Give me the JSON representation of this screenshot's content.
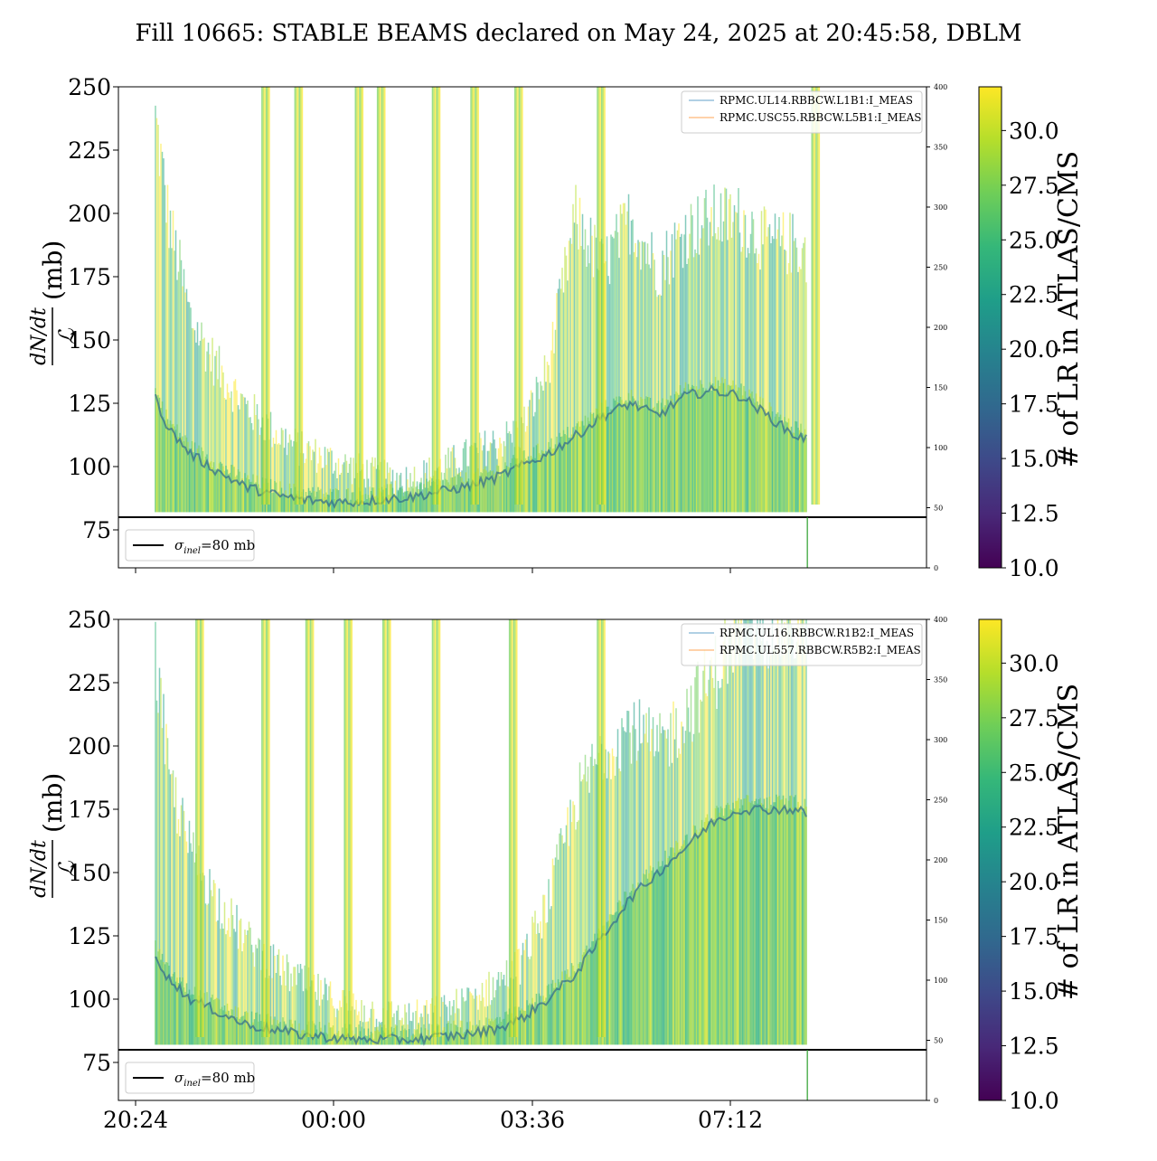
{
  "title": "Fill 10665: STABLE BEAMS declared on May 24, 2025 at 20:45:58, DBLM",
  "colors": {
    "viridis": [
      "#440154",
      "#482878",
      "#3e4989",
      "#31688e",
      "#26828e",
      "#1f9e89",
      "#35b779",
      "#6ece58",
      "#b5de2b",
      "#fde725"
    ],
    "trace_blue": "#1f77b4",
    "trace_orange": "#ff7f0e",
    "reference_line": "#000000"
  },
  "chart_data": [
    {
      "type": "area",
      "ylabel_numerator": "dN/dt",
      "ylabel_denominator": "ℒ",
      "ylabel_unit": "(mb)",
      "ylim": [
        60,
        250
      ],
      "yticks": [
        75,
        100,
        125,
        150,
        175,
        200,
        225,
        250
      ],
      "xticks": [
        "20:24",
        "00:00",
        "03:36",
        "07:12"
      ],
      "show_xtick_labels": false,
      "twin_ylim": [
        0,
        400
      ],
      "twin_yticks": [
        0,
        50,
        100,
        150,
        200,
        250,
        300,
        350,
        400
      ],
      "colorbar": {
        "label": "# of LR in ATLAS/CMS",
        "range": [
          10,
          32
        ],
        "ticks": [
          "10.0",
          "12.5",
          "15.0",
          "17.5",
          "20.0",
          "22.5",
          "25.0",
          "27.5",
          "30.0"
        ]
      },
      "series": [
        {
          "name": "RPMC.UL14.RBBCW.L1B1:I_MEAS",
          "color": "#1f77b4"
        },
        {
          "name": "RPMC.USC55.RBBCW.L5B1:I_MEAS",
          "color": "#ff7f0e"
        }
      ],
      "reference": {
        "label_symbol": "σ",
        "label_sub": "inel",
        "label_rest": "=80 mb",
        "value": 80
      },
      "band_envelope": {
        "x": [
          0.0,
          0.3,
          0.6,
          1.0,
          1.5,
          2.0,
          2.5,
          3.0,
          3.5,
          4.0,
          4.5,
          5.0,
          5.5,
          6.0,
          6.5,
          7.0,
          7.5,
          8.0,
          8.5,
          9.0,
          9.5,
          10.0,
          10.5,
          11.0,
          11.5,
          12.0,
          12.5
        ],
        "upper": [
          250,
          250,
          200,
          160,
          140,
          125,
          115,
          108,
          104,
          100,
          97,
          96,
          100,
          105,
          110,
          115,
          140,
          200,
          180,
          200,
          180,
          195,
          200,
          200,
          190,
          190,
          180
        ],
        "center": [
          140,
          130,
          115,
          105,
          98,
          92,
          89,
          87,
          86,
          86,
          87,
          88,
          90,
          92,
          95,
          100,
          105,
          112,
          120,
          125,
          120,
          128,
          130,
          128,
          120,
          112,
          110
        ],
        "lower": [
          82,
          82,
          82,
          82,
          82,
          82,
          82,
          82,
          82,
          82,
          82,
          82,
          82,
          82,
          82,
          82,
          82,
          82,
          82,
          82,
          82,
          82,
          82,
          82,
          82,
          82,
          82
        ],
        "spikes": [
          2.3,
          2.9,
          4.0,
          4.4,
          5.4,
          6.1,
          6.9,
          8.4,
          12.3
        ],
        "x_end": 12.2
      }
    },
    {
      "type": "area",
      "ylabel_numerator": "dN/dt",
      "ylabel_denominator": "ℒ",
      "ylabel_unit": "(mb)",
      "ylim": [
        60,
        250
      ],
      "yticks": [
        75,
        100,
        125,
        150,
        175,
        200,
        225,
        250
      ],
      "xticks": [
        "20:24",
        "00:00",
        "03:36",
        "07:12"
      ],
      "show_xtick_labels": true,
      "twin_ylim": [
        0,
        400
      ],
      "twin_yticks": [
        0,
        50,
        100,
        150,
        200,
        250,
        300,
        350,
        400
      ],
      "colorbar": {
        "label": "# of LR in ATLAS/CMS",
        "range": [
          10,
          32
        ],
        "ticks": [
          "10.0",
          "12.5",
          "15.0",
          "17.5",
          "20.0",
          "22.5",
          "25.0",
          "27.5",
          "30.0"
        ]
      },
      "series": [
        {
          "name": "RPMC.UL16.RBBCW.R1B2:I_MEAS",
          "color": "#1f77b4"
        },
        {
          "name": "RPMC.UL557.RBBCW.R5B2:I_MEAS",
          "color": "#ff7f0e"
        }
      ],
      "reference": {
        "label_symbol": "σ",
        "label_sub": "inel",
        "label_rest": "=80 mb",
        "value": 80
      },
      "band_envelope": {
        "x": [
          0.0,
          0.3,
          0.6,
          1.0,
          1.5,
          2.0,
          2.5,
          3.0,
          3.5,
          4.0,
          4.5,
          5.0,
          5.5,
          6.0,
          6.5,
          7.0,
          7.5,
          8.0,
          8.5,
          9.0,
          9.5,
          10.0,
          10.5,
          11.0,
          11.5,
          12.0,
          12.5
        ],
        "upper": [
          250,
          250,
          190,
          160,
          140,
          125,
          115,
          108,
          102,
          98,
          95,
          94,
          96,
          100,
          106,
          115,
          140,
          180,
          200,
          210,
          200,
          215,
          230,
          250,
          250,
          250,
          250
        ],
        "center": [
          130,
          120,
          108,
          100,
          95,
          90,
          88,
          86,
          85,
          84,
          84,
          84,
          85,
          86,
          88,
          92,
          100,
          110,
          125,
          140,
          150,
          160,
          170,
          175,
          175,
          175,
          170
        ],
        "lower": [
          82,
          82,
          82,
          82,
          82,
          82,
          82,
          82,
          82,
          82,
          82,
          82,
          82,
          82,
          82,
          82,
          82,
          82,
          82,
          82,
          82,
          82,
          82,
          82,
          82,
          82,
          82
        ],
        "spikes": [
          1.1,
          2.3,
          3.1,
          3.8,
          4.5,
          5.4,
          6.8,
          8.4
        ],
        "x_end": 12.2
      }
    }
  ]
}
